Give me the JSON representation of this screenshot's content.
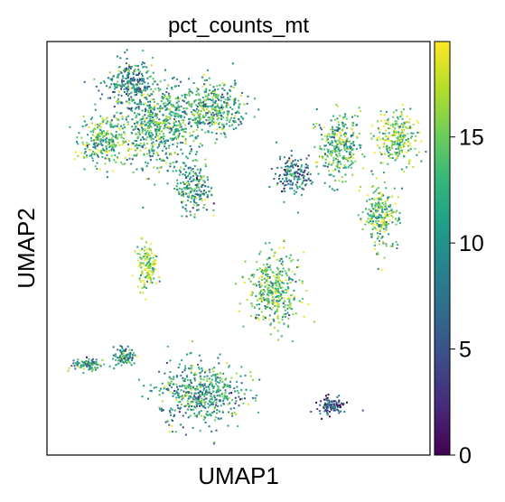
{
  "chart_data": {
    "type": "scatter",
    "title": "pct_counts_mt",
    "xlabel": "UMAP1",
    "ylabel": "UMAP2",
    "colorbar": {
      "colormap": "viridis",
      "range": [
        0,
        19.5
      ],
      "ticks": [
        0,
        5,
        10,
        15
      ],
      "tick_labels": [
        "0",
        "5",
        "10",
        "15"
      ],
      "stops": [
        "#440154",
        "#482878",
        "#3e4989",
        "#31688e",
        "#26828e",
        "#1f9e89",
        "#35b779",
        "#6ece58",
        "#b5de2b",
        "#fde725"
      ]
    },
    "xticks_shown": false,
    "yticks_shown": false,
    "grid": false,
    "clusters": [
      {
        "name": "upper-left-large",
        "cx": 0.28,
        "cy": 0.8,
        "rx": 0.1,
        "ry": 0.09,
        "mean": 12
      },
      {
        "name": "upper-left-top",
        "cx": 0.22,
        "cy": 0.9,
        "rx": 0.06,
        "ry": 0.05,
        "mean": 9
      },
      {
        "name": "upper-left-arm",
        "cx": 0.14,
        "cy": 0.76,
        "rx": 0.05,
        "ry": 0.05,
        "mean": 13
      },
      {
        "name": "upper-mid-arc",
        "cx": 0.43,
        "cy": 0.84,
        "rx": 0.08,
        "ry": 0.06,
        "mean": 12
      },
      {
        "name": "upper-mid-tail",
        "cx": 0.38,
        "cy": 0.65,
        "rx": 0.04,
        "ry": 0.06,
        "mean": 11
      },
      {
        "name": "left-island",
        "cx": 0.26,
        "cy": 0.46,
        "rx": 0.025,
        "ry": 0.05,
        "mean": 16
      },
      {
        "name": "center-blob",
        "cx": 0.59,
        "cy": 0.4,
        "rx": 0.06,
        "ry": 0.08,
        "mean": 14
      },
      {
        "name": "right-cluster-a",
        "cx": 0.76,
        "cy": 0.75,
        "rx": 0.05,
        "ry": 0.07,
        "mean": 13
      },
      {
        "name": "right-cluster-b",
        "cx": 0.91,
        "cy": 0.77,
        "rx": 0.05,
        "ry": 0.06,
        "mean": 15
      },
      {
        "name": "right-arm",
        "cx": 0.87,
        "cy": 0.58,
        "rx": 0.04,
        "ry": 0.07,
        "mean": 14
      },
      {
        "name": "right-mid-small",
        "cx": 0.64,
        "cy": 0.68,
        "rx": 0.04,
        "ry": 0.04,
        "mean": 8
      },
      {
        "name": "bottom-left-small",
        "cx": 0.1,
        "cy": 0.22,
        "rx": 0.04,
        "ry": 0.015,
        "mean": 11
      },
      {
        "name": "bottom-left-pair",
        "cx": 0.2,
        "cy": 0.24,
        "rx": 0.025,
        "ry": 0.02,
        "mean": 10
      },
      {
        "name": "bottom-center",
        "cx": 0.4,
        "cy": 0.15,
        "rx": 0.1,
        "ry": 0.07,
        "mean": 11
      },
      {
        "name": "bottom-right-ring",
        "cx": 0.74,
        "cy": 0.12,
        "rx": 0.035,
        "ry": 0.02,
        "mean": 5
      }
    ]
  }
}
